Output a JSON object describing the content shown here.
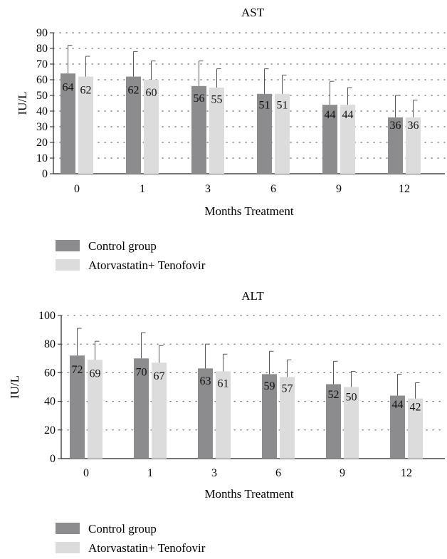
{
  "chart_data": [
    {
      "type": "bar",
      "title": "AST",
      "xlabel": "Months Treatment",
      "ylabel": "IU/L",
      "categories": [
        "0",
        "1",
        "3",
        "6",
        "9",
        "12"
      ],
      "ylim": [
        0,
        90
      ],
      "yticks": [
        0,
        10,
        20,
        30,
        40,
        50,
        60,
        70,
        80,
        90
      ],
      "series": [
        {
          "name": "Control group",
          "color": "#8c8c8e",
          "values": [
            64,
            62,
            56,
            51,
            44,
            36
          ],
          "error_upper": [
            82,
            78,
            72,
            67,
            59,
            50
          ]
        },
        {
          "name": "Atorvastatin+ Tenofovir",
          "color": "#dcdcdd",
          "values": [
            62,
            60,
            55,
            51,
            44,
            36
          ],
          "error_upper": [
            75,
            72,
            67,
            63,
            55,
            47
          ]
        }
      ],
      "legend": "bottom-left",
      "grid": "dotted-horizontal"
    },
    {
      "type": "bar",
      "title": "ALT",
      "xlabel": "Months Treatment",
      "ylabel": "IU/L",
      "categories": [
        "0",
        "1",
        "3",
        "6",
        "9",
        "12"
      ],
      "ylim": [
        0,
        100
      ],
      "yticks": [
        0,
        20,
        40,
        60,
        80,
        100
      ],
      "series": [
        {
          "name": "Control group",
          "color": "#8c8c8e",
          "values": [
            72,
            70,
            63,
            59,
            52,
            44
          ],
          "error_upper": [
            91,
            88,
            80,
            75,
            68,
            59
          ]
        },
        {
          "name": "Atorvastatin+ Tenofovir",
          "color": "#dcdcdd",
          "values": [
            69,
            67,
            61,
            57,
            50,
            42
          ],
          "error_upper": [
            82,
            79,
            73,
            69,
            61,
            53
          ]
        }
      ],
      "legend": "bottom-left",
      "grid": "dotted-horizontal"
    }
  ]
}
